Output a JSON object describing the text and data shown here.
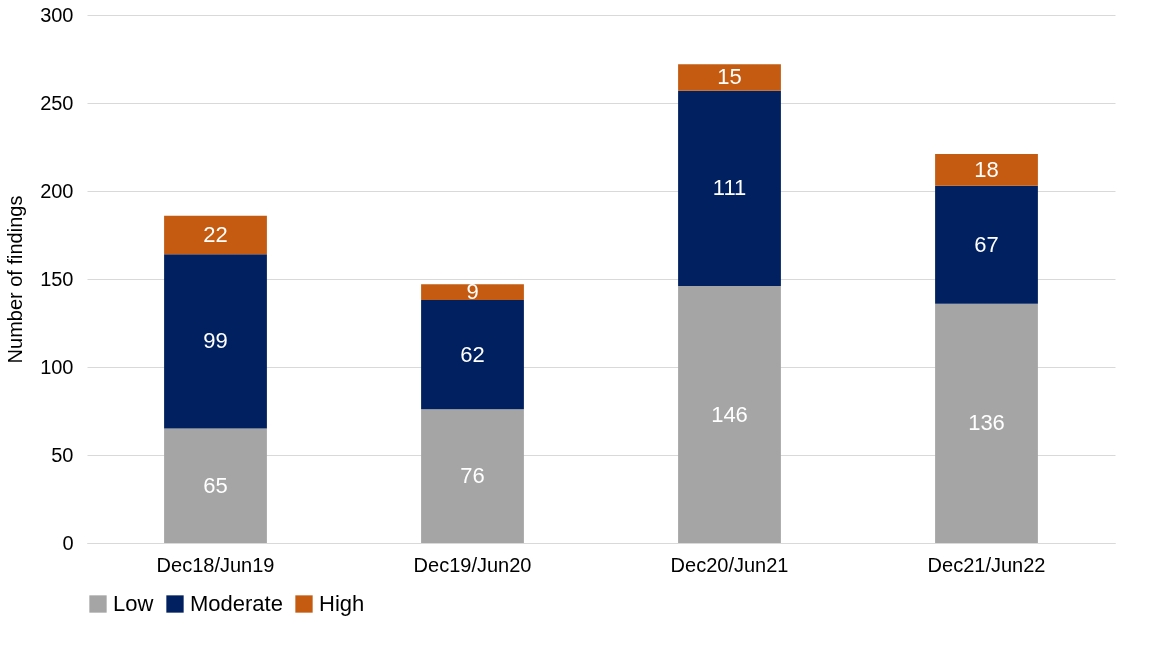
{
  "chart_data": {
    "type": "bar",
    "stacked": true,
    "ylabel": "Number of findings",
    "categories": [
      "Dec18/Jun19",
      "Dec19/Jun20",
      "Dec20/Jun21",
      "Dec21/Jun22"
    ],
    "series": [
      {
        "name": "Low",
        "color": "#a5a5a5",
        "values": [
          65,
          76,
          146,
          136
        ]
      },
      {
        "name": "Moderate",
        "color": "#002060",
        "values": [
          99,
          62,
          111,
          67
        ]
      },
      {
        "name": "High",
        "color": "#c55a11",
        "values": [
          22,
          9,
          15,
          18
        ]
      }
    ],
    "ylim": [
      0,
      300
    ],
    "yticks": [
      0,
      50,
      100,
      150,
      200,
      250,
      300
    ],
    "grid": "y",
    "legend": "bottom",
    "data_labels": true
  }
}
